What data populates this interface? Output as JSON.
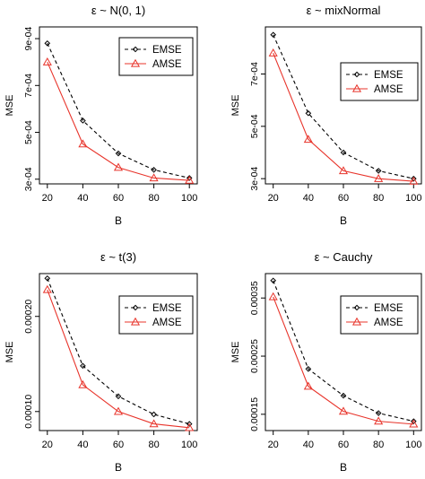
{
  "chart_data": [
    {
      "type": "line",
      "title": "ε ~ N(0, 1)",
      "xlabel": "B",
      "ylabel": "MSE",
      "x": [
        20,
        40,
        60,
        80,
        100
      ],
      "xticks": [
        "20",
        "40",
        "60",
        "80",
        "100"
      ],
      "ylim": [
        0.00028,
        0.00095
      ],
      "yticks": [
        {
          "value": 0.0003,
          "label": "3e-04"
        },
        {
          "value": 0.0005,
          "label": "5e-04"
        },
        {
          "value": 0.0007,
          "label": "7e-04"
        },
        {
          "value": 0.0009,
          "label": "9e-04"
        }
      ],
      "legend": "top-right",
      "series": [
        {
          "name": "EMSE",
          "values": [
            0.00088,
            0.00055,
            0.00041,
            0.00034,
            0.000305
          ]
        },
        {
          "name": "AMSE",
          "values": [
            0.0008,
            0.00045,
            0.00035,
            0.000305,
            0.000295
          ]
        }
      ]
    },
    {
      "type": "line",
      "title": "ε ~ mixNormal",
      "xlabel": "B",
      "ylabel": "MSE",
      "x": [
        20,
        40,
        60,
        80,
        100
      ],
      "xticks": [
        "20",
        "40",
        "60",
        "80",
        "100"
      ],
      "ylim": [
        0.00028,
        0.00088
      ],
      "yticks": [
        {
          "value": 0.0003,
          "label": "3e-04"
        },
        {
          "value": 0.0005,
          "label": "5e-04"
        },
        {
          "value": 0.0007,
          "label": "7e-04"
        }
      ],
      "legend": "top-right",
      "series": [
        {
          "name": "EMSE",
          "values": [
            0.00085,
            0.00055,
            0.0004,
            0.00033,
            0.0003
          ]
        },
        {
          "name": "AMSE",
          "values": [
            0.00078,
            0.00045,
            0.00033,
            0.0003,
            0.00029
          ]
        }
      ]
    },
    {
      "type": "line",
      "title": "ε ~ t(3)",
      "xlabel": "B",
      "ylabel": "MSE",
      "x": [
        20,
        40,
        60,
        80,
        100
      ],
      "xticks": [
        "20",
        "40",
        "60",
        "80",
        "100"
      ],
      "ylim": [
        8e-05,
        0.000245
      ],
      "yticks": [
        {
          "value": 0.0001,
          "label": "0.00010"
        },
        {
          "value": 0.0002,
          "label": "0.00020"
        }
      ],
      "legend": "top-right",
      "series": [
        {
          "name": "EMSE",
          "values": [
            0.00024,
            0.000148,
            0.000116,
            9.7e-05,
            8.7e-05
          ]
        },
        {
          "name": "AMSE",
          "values": [
            0.000228,
            0.000128,
            0.0001,
            8.7e-05,
            8.3e-05
          ]
        }
      ]
    },
    {
      "type": "line",
      "title": "ε ~ Cauchy",
      "xlabel": "B",
      "ylabel": "MSE",
      "x": [
        20,
        40,
        60,
        80,
        100
      ],
      "xticks": [
        "20",
        "40",
        "60",
        "80",
        "100"
      ],
      "ylim": [
        0.000122,
        0.000392
      ],
      "yticks": [
        {
          "value": 0.00015,
          "label": "0.00015"
        },
        {
          "value": 0.00025,
          "label": "0.00025"
        },
        {
          "value": 0.00035,
          "label": "0.00035"
        }
      ],
      "legend": "top-right",
      "series": [
        {
          "name": "EMSE",
          "values": [
            0.00038,
            0.000228,
            0.000182,
            0.000152,
            0.000138
          ]
        },
        {
          "name": "AMSE",
          "values": [
            0.000352,
            0.000198,
            0.000155,
            0.000138,
            0.000133
          ]
        }
      ]
    }
  ],
  "colors": {
    "EMSE": "#000000",
    "AMSE": "#e8342b"
  }
}
